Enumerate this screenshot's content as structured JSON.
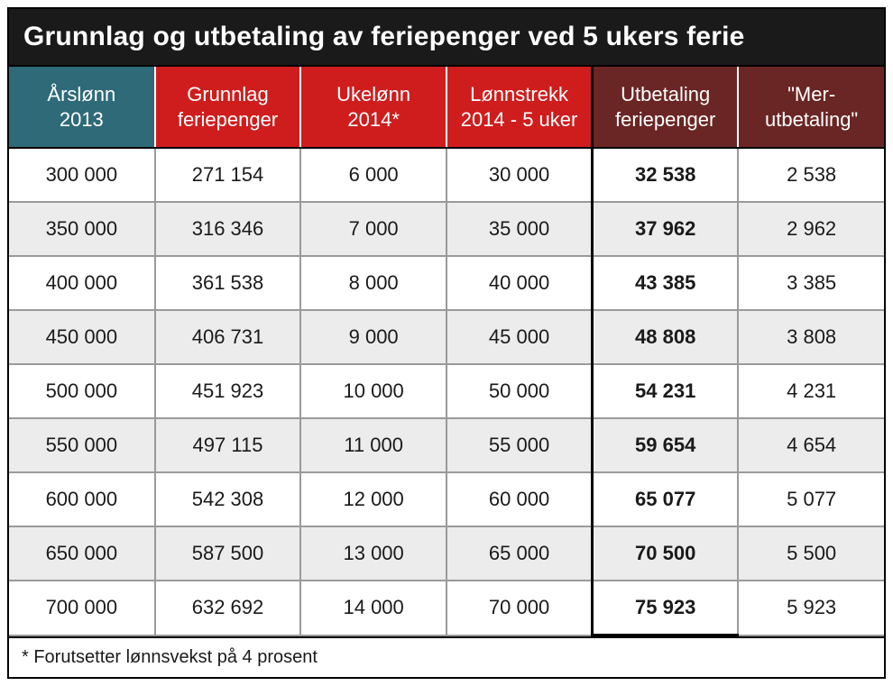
{
  "title": "Grunnlag og utbetaling av feriepenger ved 5 ukers ferie",
  "footnote": "* Forutsetter lønnsvekst på 4 prosent",
  "columns": [
    {
      "line1": "Årslønn",
      "line2": "2013",
      "theme": "teal",
      "bold": false,
      "outlined": false
    },
    {
      "line1": "Grunnlag",
      "line2": "feriepenger",
      "theme": "red",
      "bold": false,
      "outlined": false
    },
    {
      "line1": "Ukelønn",
      "line2": "2014*",
      "theme": "red",
      "bold": false,
      "outlined": false
    },
    {
      "line1": "Lønnstrekk",
      "line2": "2014 - 5 uker",
      "theme": "red",
      "bold": false,
      "outlined": false
    },
    {
      "line1": "Utbetaling",
      "line2": "feriepenger",
      "theme": "maroon",
      "bold": true,
      "outlined": true
    },
    {
      "line1": "\"Mer-",
      "line2": "utbetaling\"",
      "theme": "maroon",
      "bold": false,
      "outlined": false
    }
  ],
  "rows": [
    [
      "300 000",
      "271 154",
      "6 000",
      "30 000",
      "32 538",
      "2 538"
    ],
    [
      "350 000",
      "316 346",
      "7 000",
      "35 000",
      "37 962",
      "2 962"
    ],
    [
      "400 000",
      "361 538",
      "8 000",
      "40 000",
      "43 385",
      "3 385"
    ],
    [
      "450 000",
      "406 731",
      "9 000",
      "45 000",
      "48 808",
      "3 808"
    ],
    [
      "500 000",
      "451 923",
      "10 000",
      "50 000",
      "54 231",
      "4 231"
    ],
    [
      "550 000",
      "497 115",
      "11 000",
      "55 000",
      "59 654",
      "4 654"
    ],
    [
      "600 000",
      "542 308",
      "12 000",
      "60 000",
      "65 077",
      "5 077"
    ],
    [
      "650 000",
      "587 500",
      "13 000",
      "65 000",
      "70 500",
      "5 500"
    ],
    [
      "700 000",
      "632 692",
      "14 000",
      "70 000",
      "75 923",
      "5 923"
    ]
  ],
  "colors": {
    "teal": "#2f6a79",
    "red": "#cf1d1d",
    "maroon": "#6a2624",
    "titlebar_bg": "#1a1a1a",
    "grid": "#9a9a9a",
    "stripe_even": "#ececec",
    "stripe_odd": "#ffffff"
  }
}
